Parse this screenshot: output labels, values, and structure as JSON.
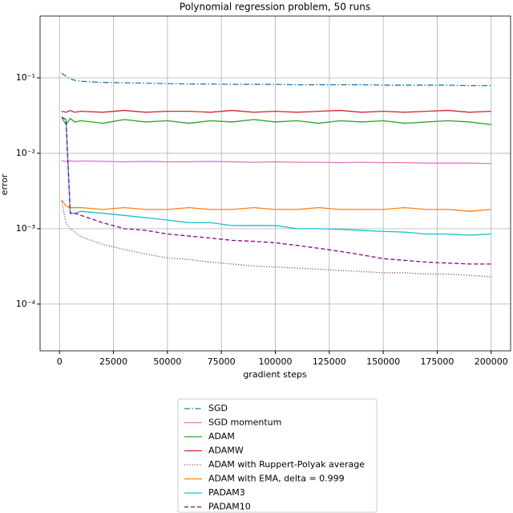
{
  "chart_data": {
    "type": "line",
    "title": "Polynomial regression problem, 50 runs",
    "x_label": "gradient steps",
    "y_label": "error",
    "x": [
      1000,
      3000,
      5000,
      7000,
      10000,
      20000,
      30000,
      40000,
      50000,
      60000,
      70000,
      80000,
      90000,
      100000,
      110000,
      120000,
      130000,
      140000,
      150000,
      160000,
      170000,
      180000,
      190000,
      200000
    ],
    "xlim": [
      -9000,
      209000
    ],
    "xticks": [
      0,
      25000,
      50000,
      75000,
      100000,
      125000,
      150000,
      175000,
      200000
    ],
    "log_scale_y": true,
    "ylim": [
      2.4e-05,
      0.66
    ],
    "yticks": [
      {
        "value": 0.0001,
        "label": "10⁻⁴"
      },
      {
        "value": 0.001,
        "label": "10⁻³"
      },
      {
        "value": 0.01,
        "label": "10⁻²"
      },
      {
        "value": 0.1,
        "label": "10⁻¹"
      }
    ],
    "grid": true,
    "legend_position": "below",
    "series": [
      {
        "name": "SGD",
        "color": "#1f77b4",
        "linestyle": "dashdot",
        "values": [
          0.115,
          0.105,
          0.097,
          0.093,
          0.09,
          0.087,
          0.086,
          0.085,
          0.084,
          0.083,
          0.083,
          0.082,
          0.082,
          0.082,
          0.081,
          0.081,
          0.081,
          0.081,
          0.08,
          0.08,
          0.08,
          0.08,
          0.079,
          0.079
        ]
      },
      {
        "name": "SGD momentum",
        "color": "#e377c2",
        "linestyle": "solid",
        "values": [
          0.0079,
          0.0078,
          0.0079,
          0.0078,
          0.0079,
          0.0078,
          0.0077,
          0.0078,
          0.0077,
          0.0077,
          0.0078,
          0.0077,
          0.0076,
          0.0077,
          0.0076,
          0.0076,
          0.0075,
          0.0076,
          0.0075,
          0.0075,
          0.0074,
          0.0074,
          0.0074,
          0.0073
        ]
      },
      {
        "name": "ADAM",
        "color": "#2ca02c",
        "linestyle": "solid",
        "values": [
          0.03,
          0.024,
          0.029,
          0.026,
          0.027,
          0.025,
          0.028,
          0.026,
          0.027,
          0.025,
          0.027,
          0.026,
          0.028,
          0.026,
          0.027,
          0.025,
          0.027,
          0.026,
          0.027,
          0.025,
          0.026,
          0.027,
          0.026,
          0.024
        ]
      },
      {
        "name": "ADAMW",
        "color": "#d62728",
        "linestyle": "solid",
        "values": [
          0.036,
          0.035,
          0.037,
          0.035,
          0.036,
          0.035,
          0.037,
          0.035,
          0.036,
          0.036,
          0.035,
          0.037,
          0.035,
          0.036,
          0.035,
          0.036,
          0.037,
          0.035,
          0.036,
          0.035,
          0.036,
          0.037,
          0.035,
          0.036
        ]
      },
      {
        "name": "ADAM with Ruppert-Polyak average",
        "color": "#8c564b",
        "linestyle": "dotted",
        "values": [
          0.0023,
          0.0012,
          0.001,
          0.0009,
          0.00078,
          0.00062,
          0.00053,
          0.00046,
          0.00041,
          0.00039,
          0.00036,
          0.00034,
          0.00032,
          0.00031,
          0.0003,
          0.00029,
          0.00028,
          0.00027,
          0.00026,
          0.00026,
          0.00025,
          0.00025,
          0.00024,
          0.00023
        ]
      },
      {
        "name": "ADAM with EMA, delta = 0.999",
        "color": "#ff7f0e",
        "linestyle": "solid",
        "values": [
          0.0024,
          0.002,
          0.0019,
          0.0019,
          0.0019,
          0.0018,
          0.0019,
          0.0018,
          0.0018,
          0.0019,
          0.0018,
          0.0018,
          0.0019,
          0.0018,
          0.0018,
          0.0019,
          0.0018,
          0.0018,
          0.0018,
          0.0019,
          0.0018,
          0.0018,
          0.0017,
          0.0018
        ]
      },
      {
        "name": "PADAM3",
        "color": "#17becf",
        "linestyle": "solid",
        "values": [
          0.03,
          0.028,
          0.0016,
          0.0016,
          0.0017,
          0.0016,
          0.0015,
          0.0014,
          0.0013,
          0.0012,
          0.0012,
          0.0011,
          0.0011,
          0.0011,
          0.001,
          0.001,
          0.00098,
          0.00095,
          0.00092,
          0.0009,
          0.00085,
          0.00085,
          0.00082,
          0.00085
        ]
      },
      {
        "name": "PADAM10",
        "color": "#8b008b",
        "linestyle": "dashed",
        "values": [
          0.03,
          0.028,
          0.0016,
          0.0016,
          0.0015,
          0.0012,
          0.001,
          0.00095,
          0.00085,
          0.0008,
          0.00075,
          0.0007,
          0.00068,
          0.00065,
          0.0006,
          0.00055,
          0.0005,
          0.00045,
          0.0004,
          0.00038,
          0.00036,
          0.00035,
          0.00034,
          0.00034
        ]
      }
    ]
  }
}
